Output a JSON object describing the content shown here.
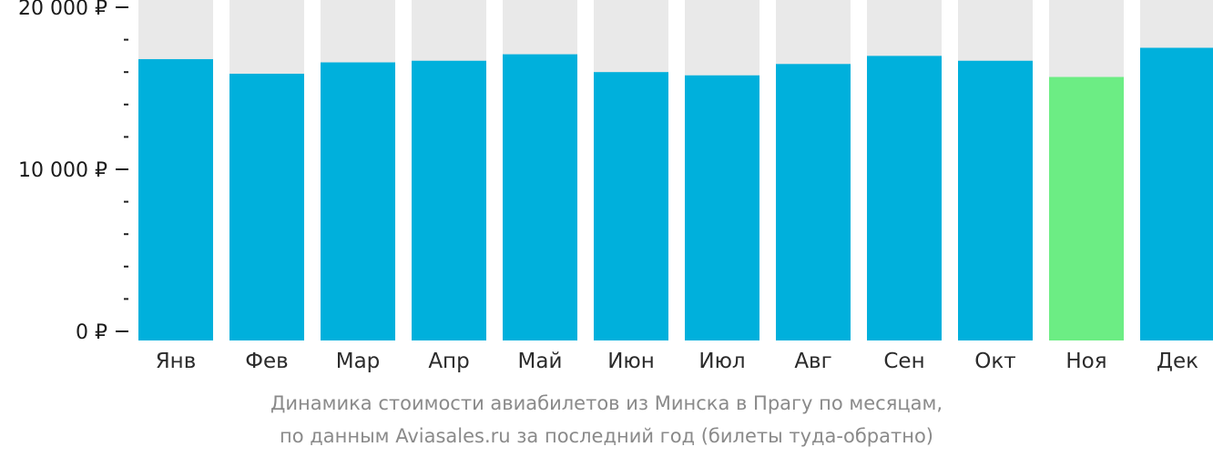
{
  "chart_data": {
    "type": "bar",
    "categories": [
      "Янв",
      "Фев",
      "Мар",
      "Апр",
      "Май",
      "Июн",
      "Июл",
      "Авг",
      "Сен",
      "Окт",
      "Ноя",
      "Дек"
    ],
    "values": [
      16800,
      15900,
      16600,
      16700,
      17100,
      16000,
      15800,
      16500,
      17000,
      16700,
      15700,
      17500
    ],
    "highlighted_category": "Ноя",
    "ylim": [
      0,
      20000
    ],
    "yticks": [
      {
        "value": 0,
        "label": "0 ₽"
      },
      {
        "value": 10000,
        "label": "10 000 ₽"
      },
      {
        "value": 20000,
        "label": "20 000 ₽"
      }
    ],
    "minor_tick_step": 2000,
    "grid": false,
    "colors": {
      "bar": "#00b0dc",
      "bar_highlight": "#6ced84",
      "bar_background": "#e9e9e9",
      "axis_text": "#1a1a1a",
      "caption_text": "#8a8a8a"
    }
  },
  "caption": {
    "line1": "Динамика стоимости авиабилетов из Минска в Прагу по месяцам,",
    "line2": "по данным Aviasales.ru за последний год (билеты туда-обратно)"
  }
}
